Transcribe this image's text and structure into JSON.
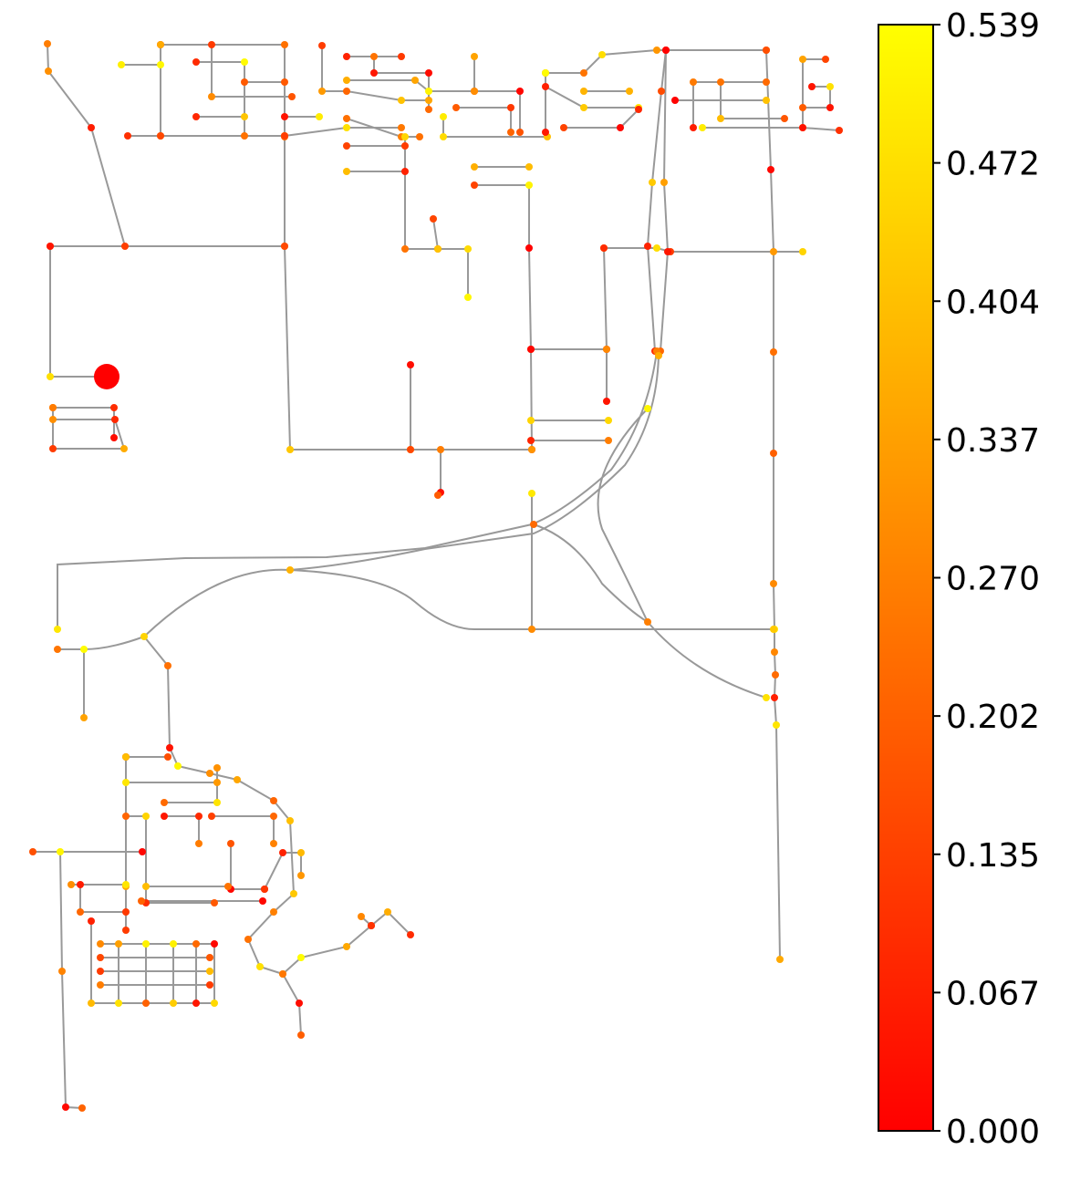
{
  "colorbar": {
    "colormap": [
      "#ff0000",
      "#ff8000",
      "#ffff00"
    ],
    "range": [
      0.0,
      0.539
    ],
    "tick_labels": [
      "0.539",
      "0.472",
      "0.404",
      "0.337",
      "0.270",
      "0.202",
      "0.135",
      "0.067",
      "0.000"
    ]
  },
  "network": {
    "edge_color": "#999999",
    "highlight_node_value": 0.0
  }
}
